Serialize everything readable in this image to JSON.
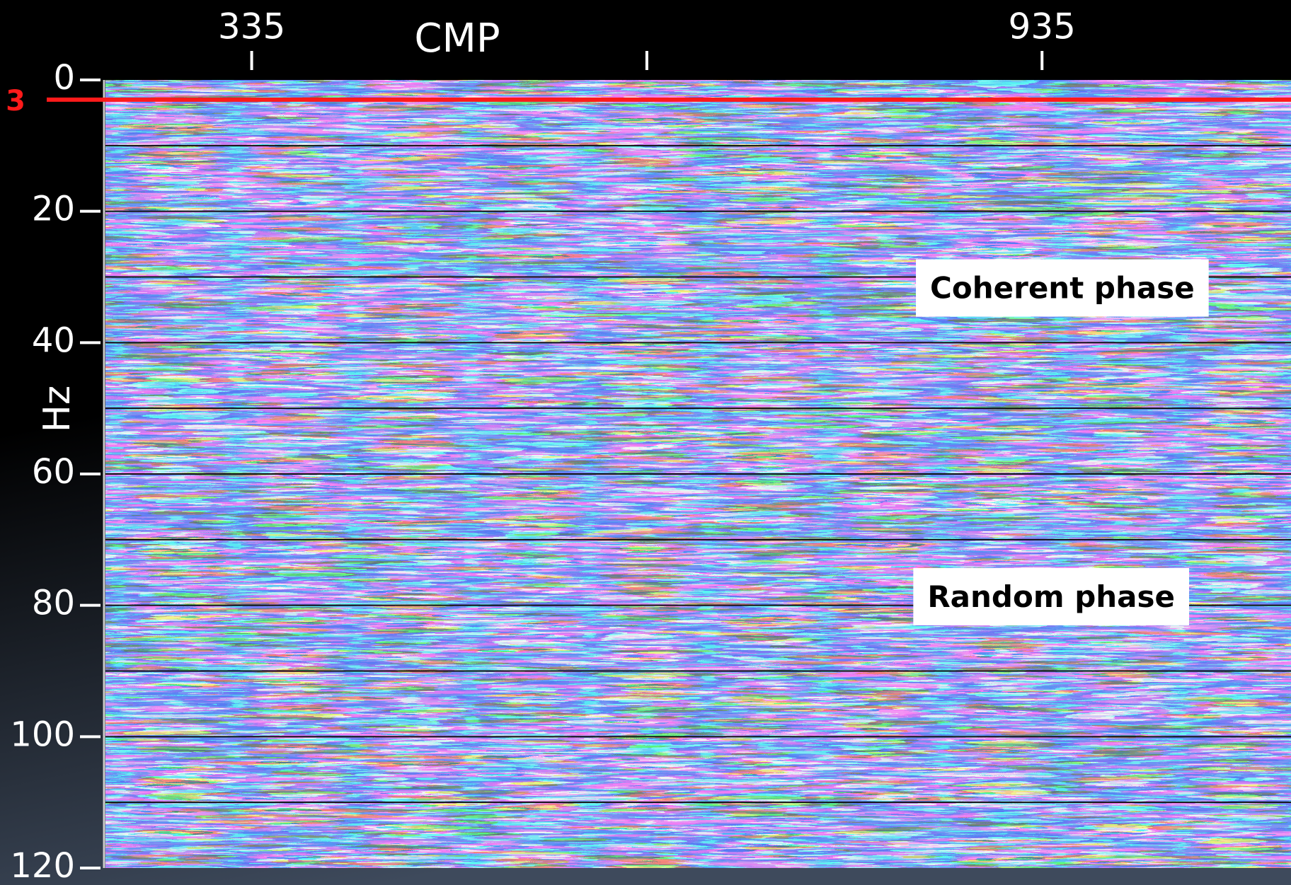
{
  "chart_data": {
    "type": "heatmap",
    "x_label": "CMP",
    "y_label": "Hz",
    "xlim": [
      224,
      1124
    ],
    "xticks": [
      335,
      935
    ],
    "ylim": [
      0,
      120
    ],
    "yticks": [
      0,
      20,
      40,
      60,
      80,
      100,
      120
    ],
    "marker": {
      "value": 3,
      "label": "3",
      "color": "#ff1a1a"
    },
    "annotations": [
      {
        "text": "Coherent phase",
        "x": 850,
        "y": 32
      },
      {
        "text": "Random phase",
        "x": 848,
        "y": 79
      }
    ]
  }
}
